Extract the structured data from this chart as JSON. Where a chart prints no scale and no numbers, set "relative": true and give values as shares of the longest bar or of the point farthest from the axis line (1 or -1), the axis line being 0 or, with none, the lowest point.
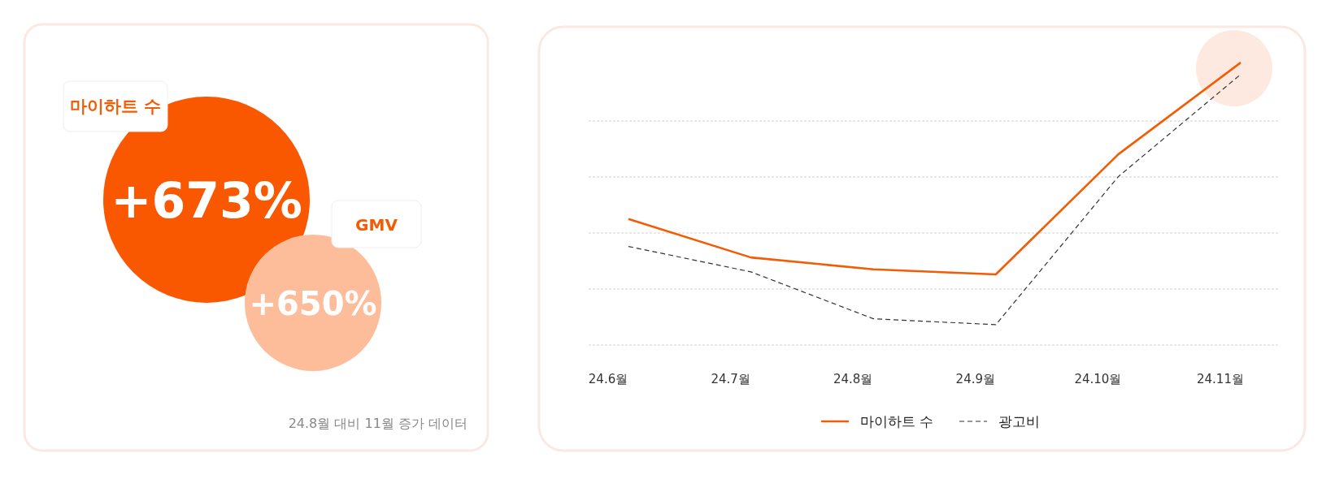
{
  "chart_data": [
    {
      "type": "other",
      "annotations": [
        "마이하트 수",
        "+673%",
        "GMV",
        "+650%",
        "24.8월 대비 11월 증가 데이터"
      ]
    },
    {
      "type": "line",
      "relative": true,
      "categories": [
        "24.6월",
        "24.7월",
        "24.8월",
        "24.9월",
        "24.10월",
        "24.11월"
      ],
      "series": [
        {
          "name": "마이하트 수",
          "color": "#f25c05",
          "values": [
            0.446,
            0.31,
            0.268,
            0.25,
            0.675,
            1.0
          ]
        },
        {
          "name": "광고비",
          "color": "#333333",
          "line_style": "dashed",
          "values": [
            0.349,
            0.259,
            0.093,
            0.072,
            0.596,
            0.958
          ]
        }
      ],
      "grid": "y",
      "legend": "bottom"
    }
  ]
}
